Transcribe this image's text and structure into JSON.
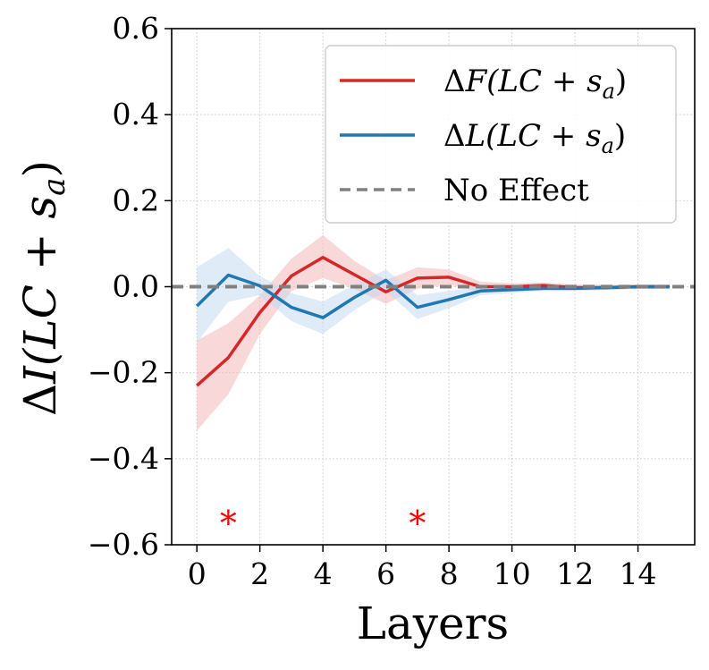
{
  "chart_data": {
    "type": "line",
    "xlabel": "Layers",
    "ylabel": "ΔI(LC + s_a)",
    "ylabel_parts": {
      "delta": "Δ",
      "main": "I(LC + s",
      "sub": "a",
      "close": ")"
    },
    "xlim": [
      -0.8,
      15.8
    ],
    "ylim": [
      -0.6,
      0.6
    ],
    "xticks": [
      0,
      2,
      4,
      6,
      8,
      10,
      12,
      14
    ],
    "xtick_labels": [
      "0",
      "2",
      "4",
      "6",
      "8",
      "10",
      "12",
      "14"
    ],
    "yticks": [
      -0.6,
      -0.4,
      -0.2,
      0.0,
      0.2,
      0.4,
      0.6
    ],
    "ytick_labels": [
      "−0.6",
      "−0.4",
      "−0.2",
      "0.0",
      "0.2",
      "0.4",
      "0.6"
    ],
    "grid": true,
    "legend_position": "top-right",
    "x": [
      0,
      1,
      2,
      3,
      4,
      5,
      6,
      7,
      8,
      9,
      10,
      11,
      12,
      13,
      14,
      15
    ],
    "series": [
      {
        "name": "ΔF(LC + s_a)",
        "label_parts": {
          "delta": "Δ",
          "main": "F(LC + s",
          "sub": "a",
          "close": ")"
        },
        "color": "#d62728",
        "band_color": "#f4b8b9",
        "values": [
          -0.23,
          -0.165,
          -0.06,
          0.025,
          0.068,
          0.028,
          -0.012,
          0.02,
          0.022,
          0.0,
          0.0,
          0.003,
          -0.002,
          -0.002,
          0.0,
          0.0
        ],
        "lower": [
          -0.335,
          -0.25,
          -0.11,
          -0.01,
          0.02,
          -0.005,
          -0.04,
          -0.005,
          0.005,
          -0.012,
          -0.008,
          -0.005,
          -0.008,
          -0.008,
          -0.005,
          -0.005
        ],
        "upper": [
          -0.125,
          -0.085,
          -0.02,
          0.065,
          0.12,
          0.06,
          0.015,
          0.045,
          0.04,
          0.012,
          0.008,
          0.01,
          0.005,
          0.005,
          0.005,
          0.005
        ]
      },
      {
        "name": "ΔL(LC + s_a)",
        "label_parts": {
          "delta": "Δ",
          "main": "L(LC + s",
          "sub": "a",
          "close": ")"
        },
        "color": "#1f77b4",
        "band_color": "#c5daf0",
        "values": [
          -0.045,
          0.027,
          0.002,
          -0.048,
          -0.072,
          -0.025,
          0.015,
          -0.048,
          -0.03,
          -0.01,
          -0.007,
          -0.004,
          -0.004,
          -0.002,
          0.0,
          0.0
        ],
        "lower": [
          -0.13,
          -0.035,
          -0.02,
          -0.08,
          -0.11,
          -0.055,
          -0.01,
          -0.075,
          -0.05,
          -0.02,
          -0.015,
          -0.01,
          -0.01,
          -0.008,
          -0.005,
          -0.005
        ],
        "upper": [
          0.045,
          0.09,
          0.025,
          -0.015,
          -0.035,
          0.005,
          0.04,
          -0.02,
          -0.01,
          0.0,
          0.0,
          0.002,
          0.002,
          0.003,
          0.005,
          0.005
        ]
      }
    ],
    "reference_line": {
      "name": "No Effect",
      "y": 0.0,
      "color": "#808080",
      "style": "dashed"
    },
    "annotations": [
      {
        "text": "*",
        "x": 1,
        "y": -0.54,
        "color": "#ff0000"
      },
      {
        "text": "*",
        "x": 7,
        "y": -0.54,
        "color": "#ff0000"
      }
    ]
  }
}
